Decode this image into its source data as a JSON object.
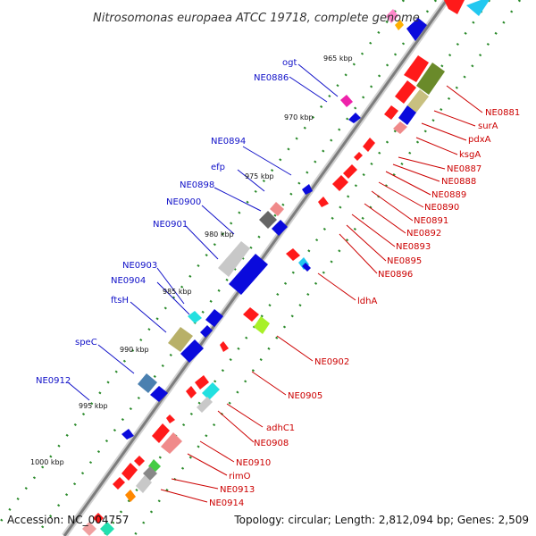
{
  "title": "Nitrosomonas europaea ATCC 19718, complete genome",
  "footer": {
    "accession": "Accession: NC_004757",
    "summary": "Topology: circular; Length: 2,812,094 bp; Genes: 2,509"
  },
  "kbp_ticks": [
    "965 kbp",
    "970 kbp",
    "975 kbp",
    "980 kbp",
    "985 kbp",
    "990 kbp",
    "995 kbp",
    "1000 kbp"
  ],
  "labels_left": [
    "ogt",
    "NE0886",
    "NE0894",
    "efp",
    "NE0898",
    "NE0900",
    "NE0901",
    "NE0903",
    "NE0904",
    "ftsH",
    "speC",
    "NE0912"
  ],
  "labels_right": [
    "NE0881",
    "surA",
    "pdxA",
    "ksgA",
    "NE0887",
    "NE0888",
    "NE0889",
    "NE0890",
    "NE0891",
    "NE0892",
    "NE0893",
    "NE0895",
    "NE0896",
    "ldhA",
    "NE0902",
    "NE0905",
    "adhC1",
    "NE0908",
    "NE0910",
    "rimO",
    "NE0913",
    "NE0914"
  ],
  "colors": {
    "reverse_label": "#1010c8",
    "forward_label": "#cc0000",
    "backbone": "#888888",
    "tick_dot": "#2a8a2a"
  }
}
